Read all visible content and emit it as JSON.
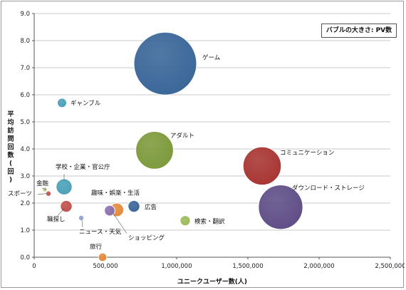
{
  "chart_data": {
    "type": "scatter",
    "subtype": "bubble",
    "size_legend": "バブルの大きさ: PV数",
    "xlabel": "ユニークユーザー数(人)",
    "ylabel": "平均訪問回数(回)",
    "xlim": [
      0,
      2500000
    ],
    "ylim": [
      0,
      9.0
    ],
    "x_ticks": [
      "0",
      "500,000",
      "1,000,000",
      "1,500,000",
      "2,000,000",
      "2,500,000"
    ],
    "y_ticks": [
      "0.0",
      "1.0",
      "2.0",
      "3.0",
      "4.0",
      "5.0",
      "6.0",
      "7.0",
      "8.0",
      "9.0"
    ],
    "grid": "horizontal",
    "legend_position": "top-right",
    "points": [
      {
        "label": "ゲーム",
        "x": 920000,
        "y": 7.15,
        "size": 100,
        "color": "#3a6699"
      },
      {
        "label": "ギャンブル",
        "x": 195000,
        "y": 5.7,
        "size": 2.2,
        "color": "#4ba0b8"
      },
      {
        "label": "アダルト",
        "x": 845000,
        "y": 3.95,
        "size": 36,
        "color": "#7d9a3b"
      },
      {
        "label": "コミュニケーション",
        "x": 1600000,
        "y": 3.37,
        "size": 37,
        "color": "#a83532"
      },
      {
        "label": "ダウンロード・ストレージ",
        "x": 1730000,
        "y": 1.85,
        "size": 50,
        "color": "#5f4e86"
      },
      {
        "label": "学校・企業・官公庁",
        "x": 210000,
        "y": 2.6,
        "size": 6.5,
        "color": "#4ba0b8"
      },
      {
        "label": "金融",
        "x": 75000,
        "y": 2.5,
        "size": 0.3,
        "color": "#b9c97a"
      },
      {
        "label": "スポーツ",
        "x": 100000,
        "y": 2.35,
        "size": 0.7,
        "color": "#c0504d"
      },
      {
        "label": "職探し",
        "x": 225000,
        "y": 1.88,
        "size": 3.5,
        "color": "#c0504d"
      },
      {
        "label": "ニュース・天気",
        "x": 330000,
        "y": 1.45,
        "size": 0.7,
        "color": "#8ea0c8"
      },
      {
        "label": "趣味・娯楽・生活",
        "x": 580000,
        "y": 1.75,
        "size": 4.7,
        "color": "#e48a3a"
      },
      {
        "label": "ショッピング",
        "x": 530000,
        "y": 1.72,
        "size": 2.8,
        "color": "#8a6fae"
      },
      {
        "label": "広告",
        "x": 700000,
        "y": 1.88,
        "size": 3.5,
        "color": "#3a6699"
      },
      {
        "label": "検索・翻訳",
        "x": 1060000,
        "y": 1.35,
        "size": 2.6,
        "color": "#9bbb59"
      },
      {
        "label": "旅行",
        "x": 480000,
        "y": 0.0,
        "size": 1.8,
        "color": "#e48a3a"
      }
    ]
  }
}
